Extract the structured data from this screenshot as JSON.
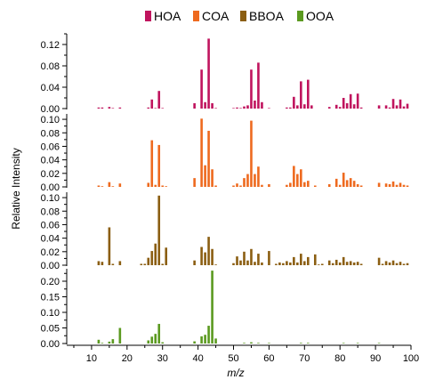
{
  "chart_data": {
    "type": "bar",
    "xlabel": "m/z",
    "ylabel": "Relative Intensity",
    "xlim": [
      3,
      100
    ],
    "xticks": [
      10,
      20,
      30,
      40,
      50,
      60,
      70,
      80,
      90,
      100
    ],
    "legend": {
      "placement": "top",
      "entries": [
        {
          "name": "HOA",
          "color": "#c0145e"
        },
        {
          "name": "COA",
          "color": "#ee6a1f"
        },
        {
          "name": "BBOA",
          "color": "#8b5e12"
        },
        {
          "name": "OOA",
          "color": "#5b9a20"
        }
      ]
    },
    "panels": [
      {
        "name": "HOA",
        "color": "#c0145e",
        "ylim": [
          0,
          0.14
        ],
        "yticks": [
          "0.00",
          "0.04",
          "0.08",
          "0.12"
        ],
        "bars": [
          [
            12,
            0.002
          ],
          [
            13,
            0.002
          ],
          [
            15,
            0.003
          ],
          [
            16,
            0.001
          ],
          [
            18,
            0.002
          ],
          [
            26,
            0.002
          ],
          [
            27,
            0.017
          ],
          [
            28,
            0.001
          ],
          [
            29,
            0.033
          ],
          [
            30,
            0.001
          ],
          [
            39,
            0.01
          ],
          [
            41,
            0.073
          ],
          [
            42,
            0.012
          ],
          [
            43,
            0.131
          ],
          [
            44,
            0.01
          ],
          [
            45,
            0.001
          ],
          [
            50,
            0.001
          ],
          [
            51,
            0.002
          ],
          [
            52,
            0.001
          ],
          [
            53,
            0.004
          ],
          [
            54,
            0.006
          ],
          [
            55,
            0.073
          ],
          [
            56,
            0.015
          ],
          [
            57,
            0.086
          ],
          [
            58,
            0.012
          ],
          [
            60,
            0.001
          ],
          [
            65,
            0.002
          ],
          [
            66,
            0.002
          ],
          [
            67,
            0.022
          ],
          [
            68,
            0.006
          ],
          [
            69,
            0.051
          ],
          [
            70,
            0.008
          ],
          [
            71,
            0.054
          ],
          [
            72,
            0.006
          ],
          [
            77,
            0.003
          ],
          [
            79,
            0.007
          ],
          [
            80,
            0.003
          ],
          [
            81,
            0.02
          ],
          [
            82,
            0.01
          ],
          [
            83,
            0.027
          ],
          [
            84,
            0.008
          ],
          [
            85,
            0.028
          ],
          [
            86,
            0.002
          ],
          [
            91,
            0.006
          ],
          [
            93,
            0.006
          ],
          [
            94,
            0.002
          ],
          [
            95,
            0.018
          ],
          [
            96,
            0.006
          ],
          [
            97,
            0.017
          ],
          [
            98,
            0.004
          ],
          [
            99,
            0.009
          ]
        ]
      },
      {
        "name": "COA",
        "color": "#ee6a1f",
        "ylim": [
          0,
          0.108
        ],
        "yticks": [
          "0.00",
          "0.02",
          "0.04",
          "0.06",
          "0.08",
          "0.10"
        ],
        "bars": [
          [
            12,
            0.002
          ],
          [
            13,
            0.001
          ],
          [
            15,
            0.007
          ],
          [
            16,
            0.001
          ],
          [
            18,
            0.005
          ],
          [
            26,
            0.006
          ],
          [
            27,
            0.069
          ],
          [
            28,
            0.003
          ],
          [
            29,
            0.062
          ],
          [
            30,
            0.002
          ],
          [
            31,
            0.001
          ],
          [
            39,
            0.013
          ],
          [
            41,
            0.101
          ],
          [
            42,
            0.032
          ],
          [
            43,
            0.083
          ],
          [
            44,
            0.026
          ],
          [
            45,
            0.002
          ],
          [
            50,
            0.002
          ],
          [
            51,
            0.005
          ],
          [
            52,
            0.002
          ],
          [
            53,
            0.013
          ],
          [
            54,
            0.019
          ],
          [
            55,
            0.098
          ],
          [
            56,
            0.019
          ],
          [
            57,
            0.03
          ],
          [
            58,
            0.003
          ],
          [
            60,
            0.004
          ],
          [
            65,
            0.003
          ],
          [
            66,
            0.006
          ],
          [
            67,
            0.031
          ],
          [
            68,
            0.019
          ],
          [
            69,
            0.026
          ],
          [
            70,
            0.007
          ],
          [
            71,
            0.009
          ],
          [
            73,
            0.002
          ],
          [
            77,
            0.004
          ],
          [
            79,
            0.012
          ],
          [
            80,
            0.003
          ],
          [
            81,
            0.021
          ],
          [
            82,
            0.01
          ],
          [
            83,
            0.013
          ],
          [
            84,
            0.009
          ],
          [
            85,
            0.004
          ],
          [
            86,
            0.002
          ],
          [
            91,
            0.006
          ],
          [
            93,
            0.005
          ],
          [
            94,
            0.004
          ],
          [
            95,
            0.008
          ],
          [
            96,
            0.003
          ],
          [
            97,
            0.006
          ],
          [
            98,
            0.003
          ],
          [
            99,
            0.002
          ]
        ]
      },
      {
        "name": "BBOA",
        "color": "#8b5e12",
        "ylim": [
          0,
          0.108
        ],
        "yticks": [
          "0.00",
          "0.02",
          "0.04",
          "0.06",
          "0.08",
          "0.10"
        ],
        "bars": [
          [
            12,
            0.006
          ],
          [
            13,
            0.005
          ],
          [
            15,
            0.056
          ],
          [
            16,
            0.002
          ],
          [
            18,
            0.006
          ],
          [
            24,
            0.002
          ],
          [
            25,
            0.002
          ],
          [
            26,
            0.011
          ],
          [
            27,
            0.021
          ],
          [
            28,
            0.032
          ],
          [
            29,
            0.103
          ],
          [
            30,
            0.002
          ],
          [
            31,
            0.026
          ],
          [
            39,
            0.007
          ],
          [
            41,
            0.027
          ],
          [
            42,
            0.019
          ],
          [
            43,
            0.042
          ],
          [
            44,
            0.024
          ],
          [
            45,
            0.001
          ],
          [
            50,
            0.003
          ],
          [
            51,
            0.013
          ],
          [
            52,
            0.007
          ],
          [
            53,
            0.02
          ],
          [
            54,
            0.007
          ],
          [
            55,
            0.024
          ],
          [
            56,
            0.005
          ],
          [
            57,
            0.017
          ],
          [
            58,
            0.004
          ],
          [
            60,
            0.021
          ],
          [
            62,
            0.002
          ],
          [
            63,
            0.004
          ],
          [
            64,
            0.003
          ],
          [
            65,
            0.006
          ],
          [
            66,
            0.004
          ],
          [
            67,
            0.012
          ],
          [
            68,
            0.004
          ],
          [
            69,
            0.017
          ],
          [
            70,
            0.006
          ],
          [
            71,
            0.012
          ],
          [
            73,
            0.016
          ],
          [
            74,
            0.001
          ],
          [
            75,
            0.002
          ],
          [
            77,
            0.007
          ],
          [
            78,
            0.003
          ],
          [
            79,
            0.008
          ],
          [
            80,
            0.004
          ],
          [
            81,
            0.012
          ],
          [
            82,
            0.005
          ],
          [
            83,
            0.006
          ],
          [
            84,
            0.004
          ],
          [
            85,
            0.005
          ],
          [
            86,
            0.002
          ],
          [
            91,
            0.011
          ],
          [
            92,
            0.002
          ],
          [
            93,
            0.006
          ],
          [
            94,
            0.004
          ],
          [
            95,
            0.007
          ],
          [
            96,
            0.003
          ],
          [
            97,
            0.005
          ],
          [
            98,
            0.002
          ],
          [
            99,
            0.003
          ]
        ]
      },
      {
        "name": "OOA",
        "color": "#5b9a20",
        "ylim": [
          0,
          0.24
        ],
        "yticks": [
          "0.00",
          "0.05",
          "0.10",
          "0.15",
          "0.20"
        ],
        "bars": [
          [
            12,
            0.012
          ],
          [
            13,
            0.002
          ],
          [
            15,
            0.006
          ],
          [
            16,
            0.014
          ],
          [
            18,
            0.05
          ],
          [
            26,
            0.01
          ],
          [
            27,
            0.022
          ],
          [
            28,
            0.031
          ],
          [
            29,
            0.063
          ],
          [
            30,
            0.004
          ],
          [
            39,
            0.007
          ],
          [
            41,
            0.023
          ],
          [
            42,
            0.028
          ],
          [
            43,
            0.057
          ],
          [
            44,
            0.234
          ],
          [
            45,
            0.016
          ],
          [
            53,
            0.002
          ],
          [
            55,
            0.004
          ],
          [
            57,
            0.002
          ],
          [
            60,
            0.001
          ],
          [
            69,
            0.002
          ],
          [
            71,
            0.002
          ],
          [
            81,
            0.001
          ],
          [
            85,
            0.001
          ],
          [
            91,
            0.001
          ]
        ]
      }
    ]
  }
}
